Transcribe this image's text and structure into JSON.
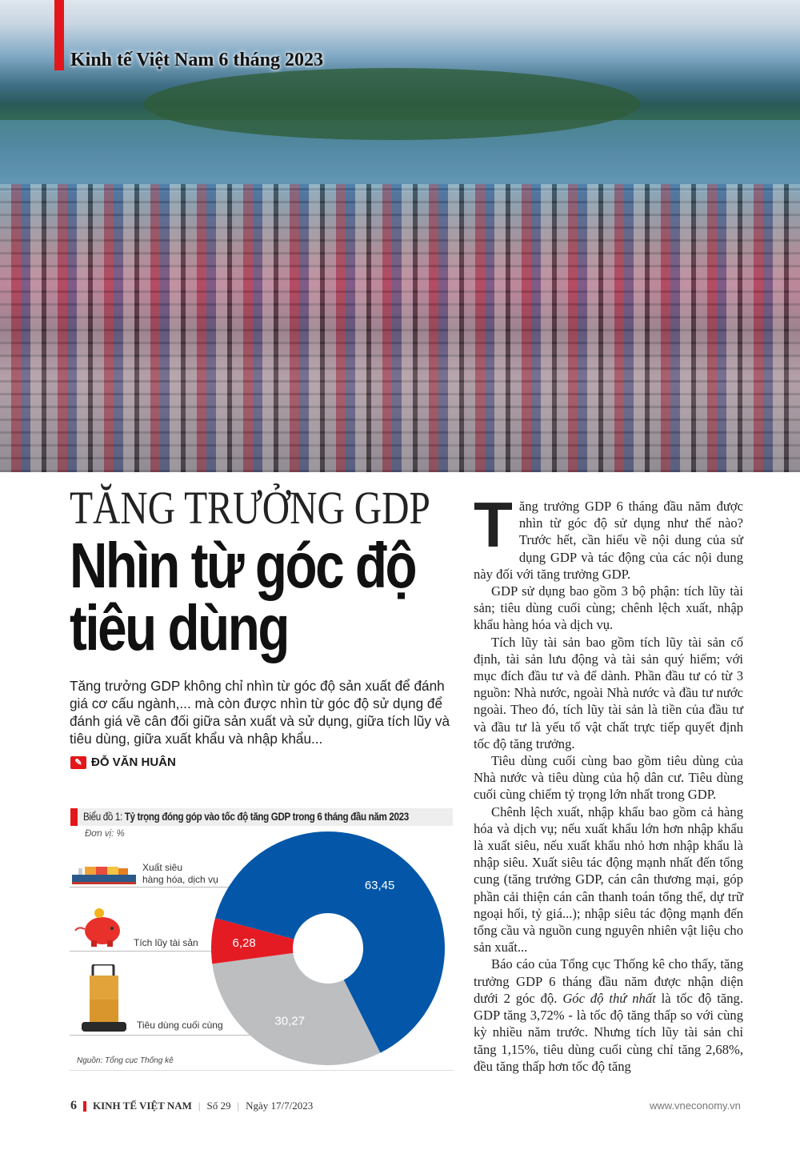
{
  "section_kicker": "Kinh tế Việt Nam 6 tháng 2023",
  "headline_top": "TĂNG TRƯỞNG GDP",
  "headline_main": "Nhìn từ góc độ tiêu dùng",
  "lede": "Tăng trưởng GDP không chỉ nhìn từ góc độ sản xuất để đánh giá cơ cấu ngành,... mà còn được nhìn từ góc độ sử dụng để đánh giá về cân đối giữa sản xuất và sử dụng, giữa tích lũy và tiêu dùng, giữa xuất khẩu và nhập khẩu...",
  "author": "ĐỖ VĂN HUÂN",
  "chart_data": {
    "type": "pie",
    "donut": true,
    "label_prefix": "Biểu đồ 1:",
    "title": "Tỷ trọng đóng góp vào tốc độ tăng GDP trong 6 tháng đầu năm 2023",
    "unit": "Đơn vị: %",
    "source": "Nguồn: Tổng cục Thống kê",
    "slices": [
      {
        "name": "Xuất siêu hàng hóa, dịch vụ",
        "name_line1": "Xuất siêu",
        "name_line2": "hàng hóa, dịch vụ",
        "value": 63.45,
        "value_label": "63,45",
        "color": "#0457a8"
      },
      {
        "name": "Tiêu dùng cuối cùng",
        "value": 30.27,
        "value_label": "30,27",
        "color": "#bdbec0"
      },
      {
        "name": "Tích lũy tài sản",
        "value": 6.28,
        "value_label": "6,28",
        "color": "#e41b23"
      }
    ]
  },
  "body": {
    "drop_cap": "T",
    "paragraphs": [
      "ăng trưởng GDP 6 tháng đầu năm được nhìn từ góc độ sử dụng như thế nào? Trước hết, cần hiểu về nội dung của sử dụng GDP và tác động của các nội dung này đối với tăng trưởng GDP.",
      "GDP sử dụng bao gồm 3 bộ phận: tích lũy tài sản; tiêu dùng cuối cùng; chênh lệch xuất, nhập khẩu hàng hóa và dịch vụ.",
      "Tích lũy tài sản bao gồm tích lũy tài sản cố định, tài sản lưu động và tài sản quý hiếm; với mục đích đầu tư và để dành. Phần đầu tư có từ 3 nguồn: Nhà nước, ngoài Nhà nước và đầu tư nước ngoài. Theo đó, tích lũy tài sản là tiền của đầu tư và đầu tư là yếu tố vật chất trực tiếp quyết định tốc độ tăng trưởng.",
      "Tiêu dùng cuối cùng bao gồm tiêu dùng của Nhà nước và tiêu dùng của hộ dân cư. Tiêu dùng cuối cùng chiếm tỷ trọng lớn nhất trong GDP.",
      "Chênh lệch xuất, nhập khẩu bao gồm cả hàng hóa và dịch vụ; nếu xuất khẩu lớn hơn nhập khẩu là xuất siêu, nếu xuất khẩu nhỏ hơn nhập khẩu là nhập siêu. Xuất siêu tác động mạnh nhất đến tổng cung (tăng trưởng GDP, cán cân thương mại, góp phần cải thiện cán cân thanh toán tổng thể, dự trữ ngoại hối, tỷ giá...); nhập siêu tác động mạnh đến tổng cầu và nguồn cung nguyên nhiên vật liệu cho sản xuất..."
    ],
    "p6_before": "Báo cáo của Tổng cục Thống kê cho thấy, tăng trưởng GDP 6 tháng đầu năm được nhận diện dưới 2 góc độ. ",
    "p6_italic": "Góc độ thứ nhất",
    "p6_after": " là tốc độ tăng. GDP tăng 3,72% - là tốc độ tăng thấp so với cùng kỳ nhiều năm trước. Nhưng tích lũy tài sản chỉ tăng 1,15%, tiêu dùng cuối cùng chỉ tăng 2,68%, đều tăng thấp hơn tốc độ tăng"
  },
  "footer": {
    "page": "6",
    "magazine": "KINH TẾ VIỆT NAM",
    "issue": "Số 29",
    "date": "Ngày 17/7/2023",
    "website": "www.vneconomy.vn"
  },
  "colors": {
    "accent": "#e3171b"
  }
}
